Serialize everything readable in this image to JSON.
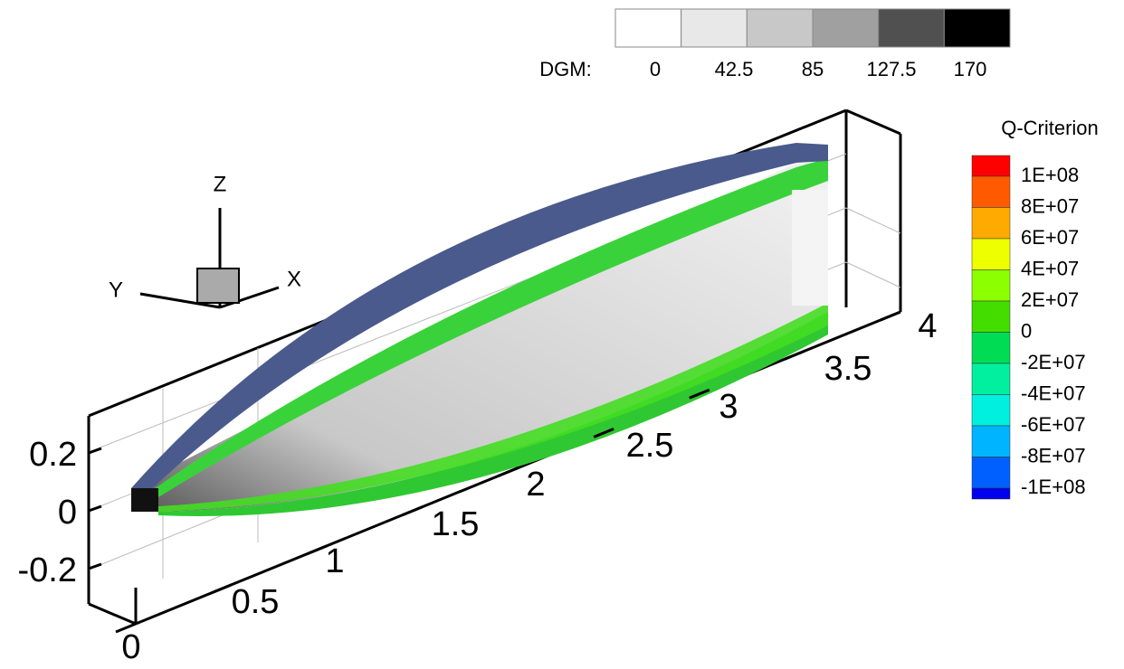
{
  "chart_data": {
    "type": "surface",
    "dgm_legend": {
      "title": "DGM:",
      "colors": [
        "#ffffff",
        "#e8e8e8",
        "#c8c8c8",
        "#a0a0a0",
        "#505050",
        "#000000"
      ],
      "ticks": [
        0,
        42.5,
        85,
        127.5,
        170
      ],
      "range": [
        0,
        170
      ]
    },
    "q_legend": {
      "title": "Q-Criterion",
      "colors": [
        "#ff0000",
        "#ff5a00",
        "#ffaa00",
        "#eeff00",
        "#8cff00",
        "#44dd00",
        "#00dd55",
        "#00f0a0",
        "#00f0e0",
        "#00b4ff",
        "#0060ff",
        "#0000ee"
      ],
      "levels": [
        {
          "value": 100000000,
          "label": "1E+08"
        },
        {
          "value": 80000000,
          "label": "8E+07"
        },
        {
          "value": 60000000,
          "label": "6E+07"
        },
        {
          "value": 40000000,
          "label": "4E+07"
        },
        {
          "value": 20000000,
          "label": "2E+07"
        },
        0,
        {
          "value": -20000000,
          "label": "-2E+07"
        },
        {
          "value": -40000000,
          "label": "-4E+07"
        },
        {
          "value": -60000000,
          "label": "-6E+07"
        },
        {
          "value": -80000000,
          "label": "-8E+07"
        },
        {
          "value": -100000000,
          "label": "-1E+08"
        }
      ]
    },
    "xticks": [
      0,
      0.5,
      1,
      1.5,
      2,
      2.5,
      3,
      3.5,
      4
    ],
    "zticks": [
      0.2,
      0,
      -0.2
    ],
    "triad": {
      "z": "Z",
      "y": "Y",
      "x": "X"
    }
  }
}
